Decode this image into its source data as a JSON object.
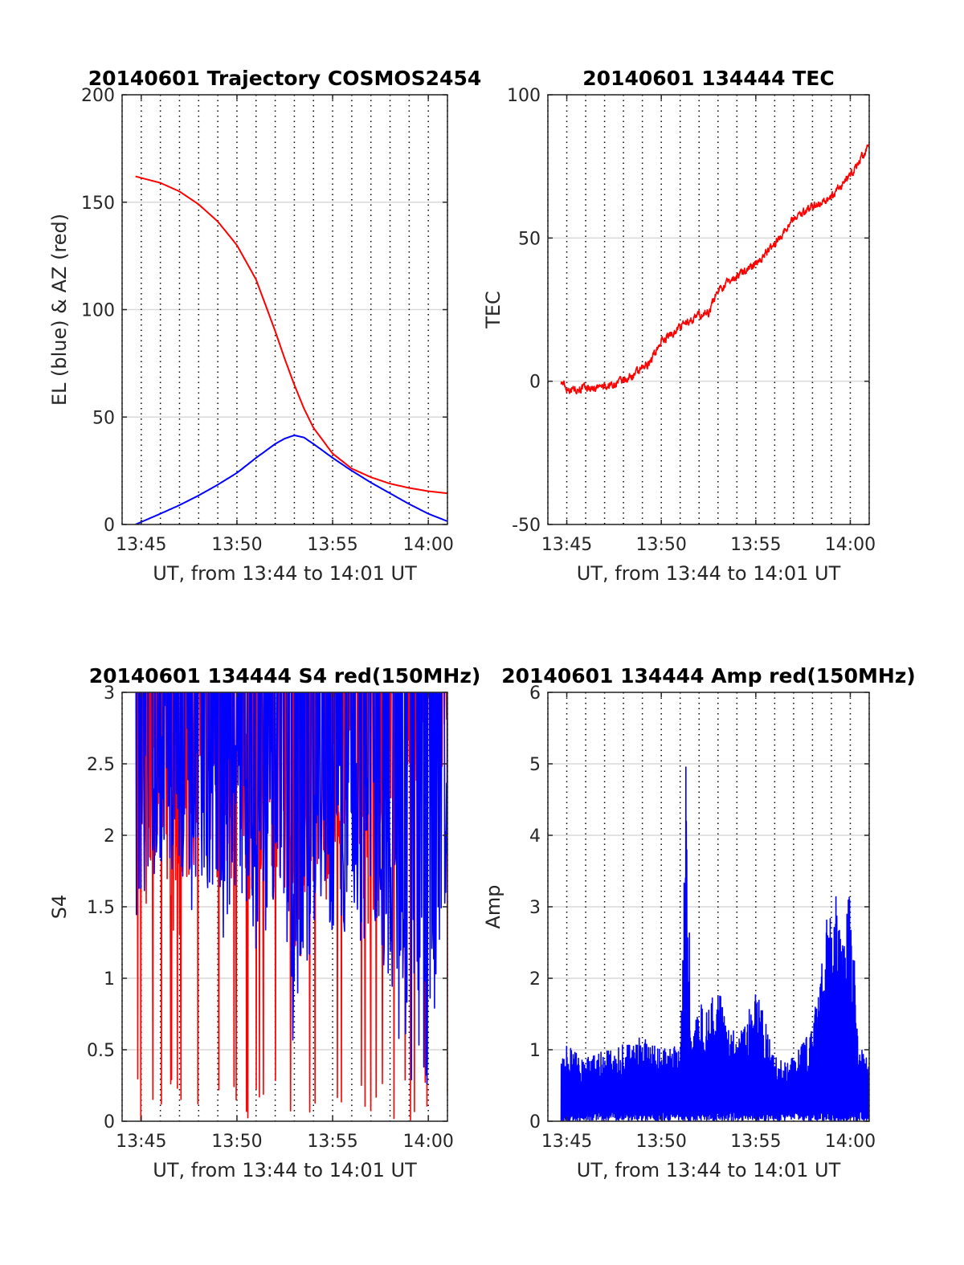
{
  "colors": {
    "el": "#0000ff",
    "az": "#ff0000",
    "tec": "#ff0000",
    "s4_red": "#ff0000",
    "s4_blue": "#0000ff",
    "amp": "#0000ff",
    "grid": "#d9d9d9"
  },
  "chart_data": [
    {
      "type": "line",
      "title": "20140601 Trajectory COSMOS2454",
      "xlabel": "UT, from 13:44 to 14:01 UT",
      "ylabel": "EL (blue) & AZ (red)",
      "xlim": [
        "13:44",
        "14:01"
      ],
      "ylim": [
        0,
        200
      ],
      "xticks": [
        "13:45",
        "13:50",
        "13:55",
        "14:00"
      ],
      "yticks": [
        "0",
        "50",
        "100",
        "150",
        "200"
      ],
      "grid": "horizontal solid gridlines, vertical dotted gridlines every minute",
      "series": [
        {
          "color": "#ff0000",
          "x": [
            "13:44.7",
            "13:46",
            "13:47",
            "13:48",
            "13:49",
            "13:50",
            "13:51",
            "13:52",
            "13:52.5",
            "13:53",
            "13:53.5",
            "13:54",
            "13:55",
            "13:56",
            "13:57",
            "13:58",
            "13:59",
            "14:00",
            "14:01"
          ],
          "values": [
            162,
            159,
            155,
            149,
            141,
            130,
            114,
            90,
            77,
            65,
            54,
            45,
            33,
            26,
            22,
            19,
            17,
            15.5,
            14.5
          ]
        },
        {
          "color": "#0000ff",
          "x": [
            "13:44.7",
            "13:46",
            "13:47",
            "13:48",
            "13:49",
            "13:50",
            "13:51",
            "13:52",
            "13:52.5",
            "13:53",
            "13:53.5",
            "13:54",
            "13:55",
            "13:56",
            "13:57",
            "13:58",
            "13:59",
            "14:00",
            "14:01"
          ],
          "values": [
            0,
            5,
            9,
            13.5,
            18.5,
            24,
            31,
            37.5,
            40,
            41.5,
            40.5,
            37.5,
            31,
            25,
            19.5,
            14.5,
            9.5,
            5,
            1.5
          ]
        }
      ]
    },
    {
      "type": "line",
      "title": "20140601 134444 TEC",
      "xlabel": "UT, from 13:44 to 14:01 UT",
      "ylabel": "TEC",
      "xlim": [
        "13:44",
        "14:01"
      ],
      "ylim": [
        -50,
        100
      ],
      "xticks": [
        "13:45",
        "13:50",
        "13:55",
        "14:00"
      ],
      "yticks": [
        "-50",
        "0",
        "50",
        "100"
      ],
      "grid": "horizontal solid gridlines, vertical dotted gridlines every minute",
      "series": [
        {
          "color": "#ff0000",
          "x": [
            "13:44.7",
            "13:45",
            "13:46",
            "13:47",
            "13:48",
            "13:49",
            "13:49.5",
            "13:50",
            "13:51",
            "13:52",
            "13:52.5",
            "13:53",
            "13:54",
            "13:55",
            "13:56",
            "13:57",
            "13:58",
            "13:59",
            "14:00",
            "14:01"
          ],
          "values": [
            0,
            -2.5,
            -2.5,
            -2,
            0,
            4,
            8,
            14,
            19,
            23,
            24,
            32,
            37,
            41,
            48,
            57,
            61,
            64,
            72,
            82
          ]
        }
      ]
    },
    {
      "type": "line",
      "title": "20140601 134444 S4 red(150MHz)",
      "xlabel": "UT, from 13:44 to 14:01 UT",
      "ylabel": "S4",
      "xlim": [
        "13:44",
        "14:01"
      ],
      "ylim": [
        0,
        3
      ],
      "xticks": [
        "13:45",
        "13:50",
        "13:55",
        "14:00"
      ],
      "yticks": [
        "0",
        "0.5",
        "1",
        "1.5",
        "2",
        "2.5",
        "3"
      ],
      "grid": "horizontal solid gridlines, vertical dotted gridlines every minute",
      "series": [
        {
          "color": "#ff0000",
          "x": [
            "13:44.7",
            "13:45",
            "13:46",
            "13:47",
            "13:48",
            "13:49",
            "13:50",
            "13:51",
            "13:52",
            "13:53",
            "13:54",
            "13:55",
            "13:56",
            "13:57",
            "13:58",
            "13:59",
            "14:00",
            "14:01"
          ],
          "values": [
            2.5,
            2.2,
            2.3,
            1.9,
            2.4,
            2.2,
            2.3,
            2.0,
            2.4,
            1.8,
            2.2,
            2.1,
            2.3,
            1.9,
            2.6,
            2.8,
            2.9,
            3.0
          ]
        },
        {
          "color": "#0000ff",
          "x": [
            "13:44.7",
            "13:45",
            "13:46",
            "13:47",
            "13:48",
            "13:49",
            "13:50",
            "13:51",
            "13:52",
            "13:53",
            "13:54",
            "13:55",
            "13:56",
            "13:57",
            "13:58",
            "13:59",
            "14:00",
            "14:01"
          ],
          "values": [
            1.7,
            2.2,
            2.4,
            2.3,
            2.2,
            1.9,
            2.2,
            1.8,
            2.2,
            1.2,
            2.0,
            1.9,
            2.0,
            1.8,
            1.7,
            0.9,
            0.8,
            2.2
          ]
        }
      ]
    },
    {
      "type": "line",
      "title": "20140601 134444 Amp red(150MHz)",
      "xlabel": "UT, from 13:44 to 14:01 UT",
      "ylabel": "Amp",
      "xlim": [
        "13:44",
        "14:01"
      ],
      "ylim": [
        0,
        6
      ],
      "xticks": [
        "13:45",
        "13:50",
        "13:55",
        "14:00"
      ],
      "yticks": [
        "0",
        "1",
        "2",
        "3",
        "4",
        "5",
        "6"
      ],
      "grid": "horizontal solid gridlines, vertical dotted gridlines every minute",
      "series": [
        {
          "color": "#0000ff",
          "x": [
            "13:44.7",
            "13:45",
            "13:46",
            "13:47",
            "13:48",
            "13:49",
            "13:50",
            "13:51",
            "13:51.3",
            "13:51.6",
            "13:52",
            "13:52.5",
            "13:53",
            "13:54",
            "13:55",
            "13:56",
            "13:57",
            "13:58",
            "13:58.7",
            "13:59",
            "13:59.5",
            "14:00",
            "14:00.5",
            "14:01"
          ],
          "values": [
            0.8,
            1.1,
            0.9,
            1.0,
            1.1,
            1.2,
            1.0,
            1.1,
            5.1,
            1.4,
            1.6,
            1.8,
            1.9,
            1.2,
            1.9,
            0.9,
            0.9,
            1.3,
            3.0,
            3.4,
            2.9,
            3.2,
            1.1,
            0.9
          ]
        }
      ]
    }
  ]
}
